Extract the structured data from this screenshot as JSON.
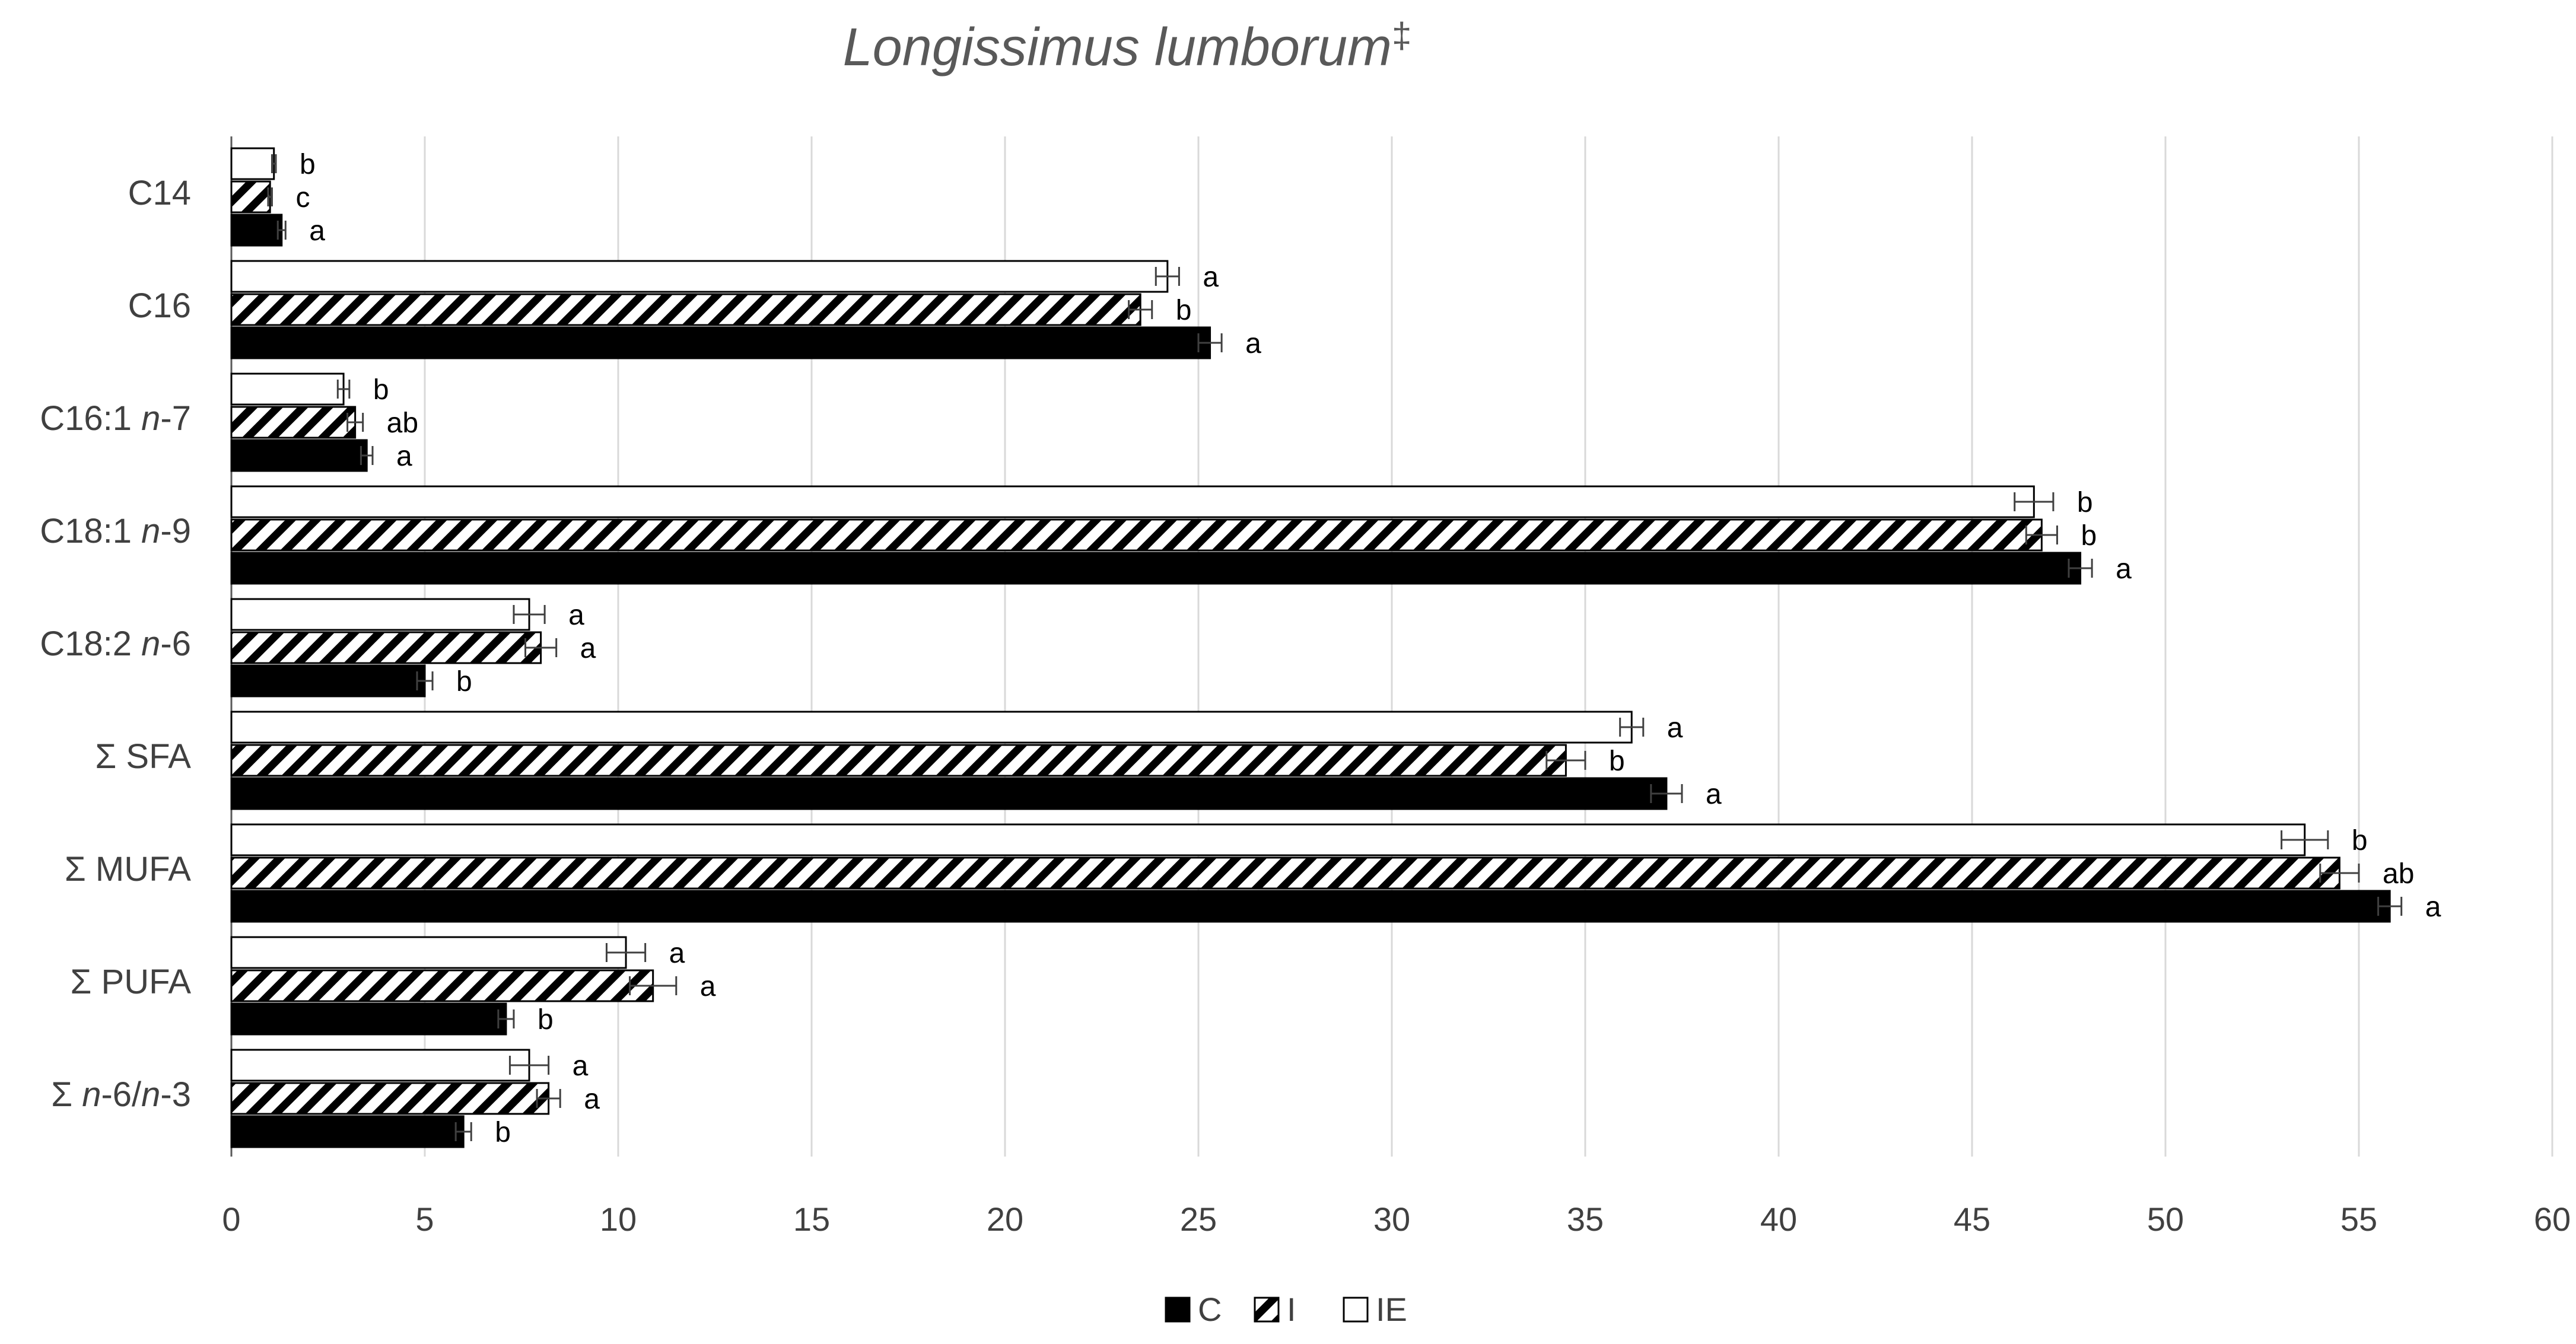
{
  "chart_data": {
    "type": "bar",
    "orientation": "horizontal",
    "title": "Longissimus lumborum",
    "title_mark": "‡",
    "xlim": [
      0,
      60
    ],
    "x_ticks": [
      "0",
      "5",
      "10",
      "15",
      "20",
      "25",
      "30",
      "35",
      "40",
      "45",
      "50",
      "55",
      "60"
    ],
    "grid": "vertical",
    "legend_position": "bottom",
    "colors": {
      "C": "#000000",
      "I": "#000000",
      "IE": "#ffffff"
    },
    "categories": [
      {
        "label": "C14",
        "parts": [
          {
            "t": "C14",
            "i": false
          }
        ]
      },
      {
        "label": "C16",
        "parts": [
          {
            "t": "C16",
            "i": false
          }
        ]
      },
      {
        "label": "C16:1 n-7",
        "parts": [
          {
            "t": "C16:1 ",
            "i": false
          },
          {
            "t": "n",
            "i": true
          },
          {
            "t": "-7",
            "i": false
          }
        ]
      },
      {
        "label": "C18:1 n-9",
        "parts": [
          {
            "t": "C18:1 ",
            "i": false
          },
          {
            "t": "n",
            "i": true
          },
          {
            "t": "-9",
            "i": false
          }
        ]
      },
      {
        "label": "C18:2 n-6",
        "parts": [
          {
            "t": "C18:2 ",
            "i": false
          },
          {
            "t": "n",
            "i": true
          },
          {
            "t": "-6",
            "i": false
          }
        ]
      },
      {
        "label": "Σ SFA",
        "parts": [
          {
            "t": "Σ SFA",
            "i": false
          }
        ]
      },
      {
        "label": "Σ MUFA",
        "parts": [
          {
            "t": "Σ MUFA",
            "i": false
          }
        ]
      },
      {
        "label": "Σ PUFA",
        "parts": [
          {
            "t": "Σ PUFA",
            "i": false
          }
        ]
      },
      {
        "label": "Σ n-6/n-3",
        "parts": [
          {
            "t": "Σ ",
            "i": false
          },
          {
            "t": "n",
            "i": true
          },
          {
            "t": "-6/",
            "i": false
          },
          {
            "t": "n",
            "i": true
          },
          {
            "t": "-3",
            "i": false
          }
        ]
      }
    ],
    "series": [
      {
        "name": "C",
        "fill": "solid",
        "values": [
          1.3,
          25.3,
          3.5,
          47.8,
          5.0,
          37.1,
          55.8,
          7.1,
          6.0
        ],
        "errors": [
          0.1,
          0.3,
          0.15,
          0.3,
          0.2,
          0.4,
          0.3,
          0.2,
          0.2
        ],
        "labels": [
          "a",
          "a",
          "a",
          "a",
          "b",
          "a",
          "a",
          "b",
          "b"
        ]
      },
      {
        "name": "I",
        "fill": "hatched",
        "values": [
          1.0,
          23.5,
          3.2,
          46.8,
          8.0,
          34.5,
          54.5,
          10.9,
          8.2
        ],
        "errors": [
          0.05,
          0.3,
          0.2,
          0.4,
          0.4,
          0.5,
          0.5,
          0.6,
          0.3
        ],
        "labels": [
          "c",
          "b",
          "ab",
          "b",
          "a",
          "b",
          "ab",
          "a",
          "a"
        ]
      },
      {
        "name": "IE",
        "fill": "empty",
        "values": [
          1.1,
          24.2,
          2.9,
          46.6,
          7.7,
          36.2,
          53.6,
          10.2,
          7.7
        ],
        "errors": [
          0.05,
          0.3,
          0.15,
          0.5,
          0.4,
          0.3,
          0.6,
          0.5,
          0.5
        ],
        "labels": [
          "b",
          "a",
          "b",
          "b",
          "a",
          "a",
          "b",
          "a",
          "a"
        ]
      }
    ]
  }
}
